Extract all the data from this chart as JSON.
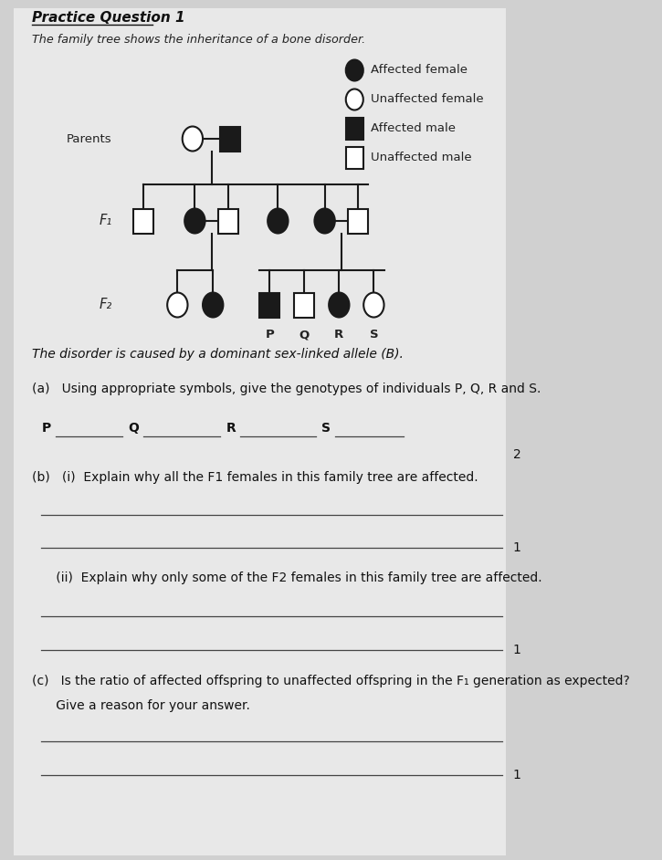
{
  "title": "Practice Question 1",
  "subtitle": "The family tree shows the inheritance of a bone disorder.",
  "background_color": "#d0d0d0",
  "page_color": "#e8e8e8",
  "legend": {
    "affected_female": "Affected female",
    "unaffected_female": "Unaffected female",
    "affected_male": "Affected male",
    "unaffected_male": "Unaffected male"
  },
  "parents_label": "Parents",
  "f1_label": "F₁",
  "f2_label": "F₂",
  "pqrs_labels": [
    "P",
    "Q",
    "R",
    "S"
  ],
  "disorder_text": "The disorder is caused by a dominant sex-linked allele (B).",
  "question_a": "(a)   Using appropriate symbols, give the genotypes of individuals P, Q, R and S.",
  "mark_a": "2",
  "question_b_i": "(b)   (i)  Explain why all the F1 females in this family tree are affected.",
  "mark_b_i": "1",
  "question_b_ii": "      (ii)  Explain why only some of the F2 females in this family tree are affected.",
  "mark_b_ii": "1",
  "question_c_1": "(c)   Is the ratio of affected offspring to unaffected offspring in the F₁ generation as expected?",
  "question_c_2": "      Give a reason for your answer.",
  "mark_c": "1"
}
